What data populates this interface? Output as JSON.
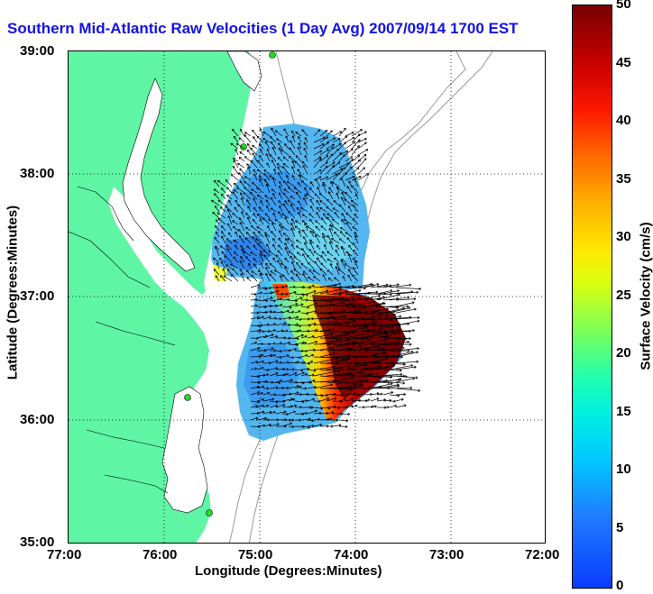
{
  "title": "Southern Mid-Atlantic Raw Velocities (1 Day Avg) 2007/09/14 1700 EST",
  "x_axis": {
    "label": "Longitude (Degrees:Minutes)",
    "ticks": [
      "77:00",
      "76:00",
      "75:00",
      "74:00",
      "73:00",
      "72:00"
    ]
  },
  "y_axis": {
    "label": "Latitude (Degrees:Minutes)",
    "ticks": [
      "39:00",
      "38:00",
      "37:00",
      "36:00",
      "35:00"
    ]
  },
  "colorbar": {
    "label": "Surface Velocity (cm/s)",
    "ticks": [
      "50",
      "45",
      "40",
      "35",
      "30",
      "25",
      "20",
      "15",
      "10",
      "5",
      "0"
    ],
    "range": [
      0,
      50
    ]
  },
  "colors": {
    "land": "#5ef5a5",
    "title": "#1212e6",
    "water": "#ffffff",
    "station": "#22dd22"
  }
}
